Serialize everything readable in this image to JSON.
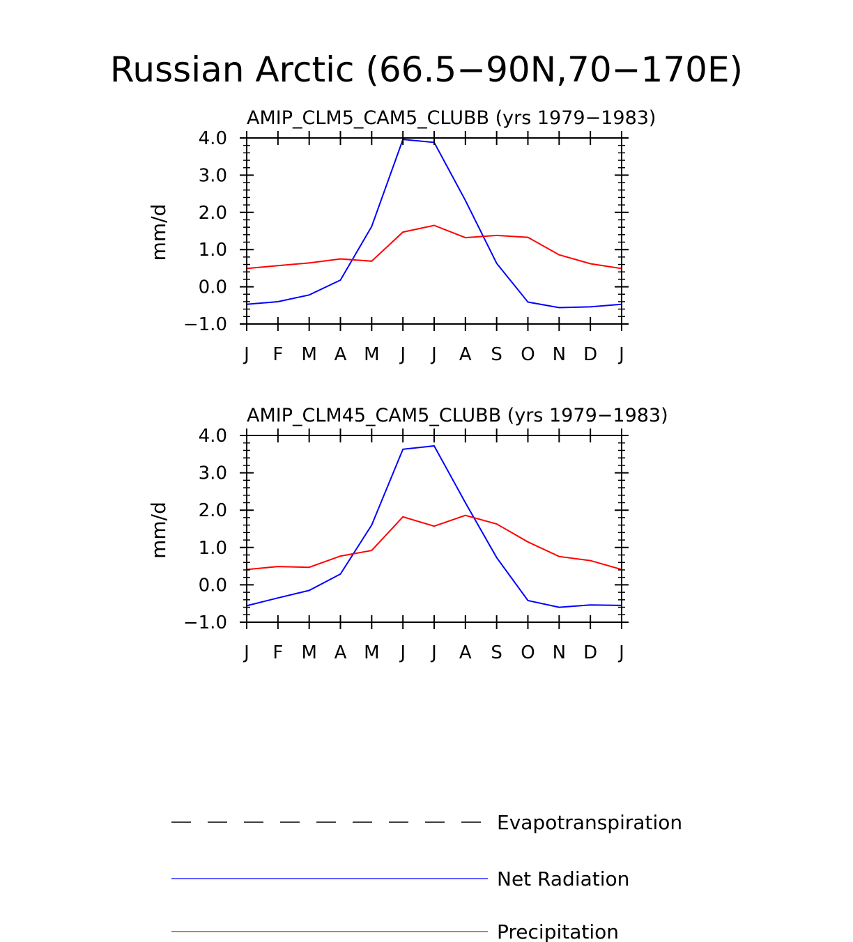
{
  "figure": {
    "title": "Russian Arctic (66.5−90N,70−170E)"
  },
  "legend": {
    "placement": "bottom-center",
    "items": [
      {
        "label": "Evapotranspiration",
        "color": "#000000",
        "style": "dashed"
      },
      {
        "label": "Net Radiation",
        "color": "#0000ff",
        "style": "solid"
      },
      {
        "label": "Precipitation",
        "color": "#ff0000",
        "style": "solid"
      }
    ]
  },
  "chart_data": [
    {
      "type": "line",
      "title": "AMIP_CLM5_CAM5_CLUBB (yrs 1979−1983)",
      "xlabel": "",
      "ylabel": "mm/d",
      "ylim": [
        -1.0,
        4.0
      ],
      "yticks": [
        "4.0",
        "3.0",
        "2.0",
        "1.0",
        "0.0",
        "−1.0"
      ],
      "yticks_values": [
        4,
        3,
        2,
        1,
        0,
        -1
      ],
      "categories": [
        "J",
        "F",
        "M",
        "A",
        "M",
        "J",
        "J",
        "A",
        "S",
        "O",
        "N",
        "D",
        "J"
      ],
      "grid": false,
      "series": [
        {
          "name": "Net Radiation",
          "color": "#0000ff",
          "values": [
            -0.47,
            -0.4,
            -0.22,
            0.18,
            1.62,
            3.96,
            3.88,
            2.32,
            0.63,
            -0.41,
            -0.56,
            -0.54,
            -0.47
          ]
        },
        {
          "name": "Precipitation",
          "color": "#ff0000",
          "values": [
            0.49,
            0.57,
            0.64,
            0.75,
            0.69,
            1.47,
            1.65,
            1.32,
            1.38,
            1.33,
            0.86,
            0.62,
            0.49
          ]
        }
      ]
    },
    {
      "type": "line",
      "title": "AMIP_CLM45_CAM5_CLUBB (yrs 1979−1983)",
      "xlabel": "",
      "ylabel": "mm/d",
      "ylim": [
        -1.0,
        4.0
      ],
      "yticks": [
        "4.0",
        "3.0",
        "2.0",
        "1.0",
        "0.0",
        "−1.0"
      ],
      "yticks_values": [
        4,
        3,
        2,
        1,
        0,
        -1
      ],
      "categories": [
        "J",
        "F",
        "M",
        "A",
        "M",
        "J",
        "J",
        "A",
        "S",
        "O",
        "N",
        "D",
        "J"
      ],
      "grid": false,
      "series": [
        {
          "name": "Net Radiation",
          "color": "#0000ff",
          "values": [
            -0.56,
            -0.35,
            -0.15,
            0.29,
            1.6,
            3.63,
            3.72,
            2.2,
            0.73,
            -0.42,
            -0.6,
            -0.54,
            -0.55
          ]
        },
        {
          "name": "Precipitation",
          "color": "#ff0000",
          "values": [
            0.41,
            0.49,
            0.47,
            0.77,
            0.92,
            1.82,
            1.57,
            1.86,
            1.63,
            1.15,
            0.76,
            0.65,
            0.41
          ]
        }
      ]
    }
  ]
}
